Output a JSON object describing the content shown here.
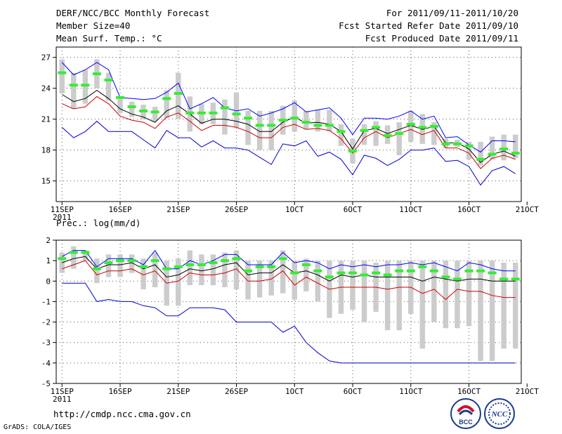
{
  "header": {
    "title": "DERF/NCC/BCC Monthly Forecast",
    "member_size": "Member Size=40",
    "variable1": "Mean Surf. Temp.: °C",
    "period": "For 2011/09/11-2011/10/20",
    "started": "Fcst Started Refer Date 2011/09/10",
    "produced": "Fcst Produced Date 2011/09/11"
  },
  "footer": {
    "url": "http://cmdp.ncc.cma.gov.cn",
    "grads": "GrADS: COLA/IGES",
    "logo1_text": "BCC",
    "logo2_text": "NCC"
  },
  "colors": {
    "max": "#0000ff",
    "min": "#0000cc",
    "ens": "#cc0000",
    "mean": "#000000",
    "obs": "#33ee33",
    "box": "#cccccc"
  },
  "chart_data": [
    {
      "type": "line",
      "title": "Mean Surf. Temp.: °C",
      "ylim": [
        13,
        28
      ],
      "yticks": [
        15,
        18,
        21,
        24,
        27
      ],
      "xlim": [
        0.5,
        40.5
      ],
      "xticks": [
        {
          "day": 1,
          "label": "11SEP",
          "sub": "2011"
        },
        {
          "day": 6,
          "label": "16SEP"
        },
        {
          "day": 11,
          "label": "21SEP"
        },
        {
          "day": 16,
          "label": "26SEP"
        },
        {
          "day": 21,
          "label": "1OCT"
        },
        {
          "day": 26,
          "label": "6OCT"
        },
        {
          "day": 31,
          "label": "11OCT"
        },
        {
          "day": 36,
          "label": "16OCT"
        },
        {
          "day": 41,
          "label": "21OCT"
        }
      ],
      "series": [
        {
          "name": "max",
          "values": [
            26.5,
            25.3,
            25.8,
            26.5,
            25.8,
            23.1,
            23.0,
            22.9,
            23.0,
            23.6,
            24.5,
            22.0,
            22.5,
            23.1,
            22.1,
            21.8,
            22.0,
            21.3,
            21.6,
            22.0,
            22.6,
            21.7,
            21.9,
            22.1,
            21.1,
            19.5,
            21.1,
            21.1,
            21.0,
            21.3,
            21.8,
            21.0,
            21.3,
            19.2,
            19.3,
            18.5,
            17.8,
            18.9,
            18.9,
            18.8
          ]
        },
        {
          "name": "min",
          "values": [
            20.2,
            19.2,
            19.8,
            20.8,
            19.8,
            19.8,
            19.8,
            19.0,
            18.2,
            19.9,
            19.2,
            19.2,
            18.3,
            18.9,
            18.2,
            18.2,
            18.0,
            17.3,
            16.6,
            18.6,
            18.4,
            18.9,
            17.4,
            17.8,
            17.1,
            15.6,
            17.5,
            17.2,
            16.5,
            17.1,
            18.0,
            18.0,
            18.2,
            16.9,
            17.0,
            16.4,
            14.6,
            16.0,
            16.4,
            15.7
          ]
        },
        {
          "name": "ens",
          "values": [
            22.5,
            22.0,
            22.2,
            23.2,
            22.5,
            21.3,
            20.9,
            20.7,
            20.1,
            21.2,
            21.6,
            20.8,
            19.9,
            20.4,
            20.4,
            20.2,
            19.8,
            19.2,
            19.2,
            20.2,
            20.5,
            20.0,
            20.1,
            19.9,
            19.1,
            17.7,
            19.2,
            19.8,
            19.2,
            19.6,
            20.0,
            19.5,
            19.9,
            18.2,
            18.2,
            17.7,
            16.2,
            17.2,
            17.5,
            17.1
          ]
        },
        {
          "name": "mean",
          "values": [
            23.4,
            22.7,
            23.0,
            23.8,
            23.0,
            22.0,
            21.5,
            21.2,
            20.7,
            21.8,
            22.3,
            21.5,
            20.6,
            21.0,
            21.0,
            20.8,
            20.5,
            19.8,
            19.8,
            20.7,
            21.2,
            20.6,
            20.7,
            20.5,
            19.8,
            18.1,
            19.9,
            20.1,
            19.6,
            20.0,
            20.4,
            20.0,
            20.3,
            18.7,
            18.7,
            18.1,
            16.8,
            17.6,
            17.9,
            17.4
          ]
        },
        {
          "name": "obs",
          "values": [
            25.5,
            24.3,
            24.3,
            25.4,
            24.8,
            23.1,
            22.2,
            21.8,
            21.7,
            23.0,
            23.5,
            21.6,
            21.6,
            21.6,
            22.1,
            21.5,
            21.1,
            20.4,
            20.4,
            20.9,
            21.1,
            20.7,
            20.4,
            20.4,
            19.8,
            17.9,
            19.9,
            20.2,
            19.4,
            19.6,
            20.5,
            20.2,
            20.3,
            18.6,
            18.6,
            18.4,
            17.1,
            17.6,
            18.1,
            17.7
          ]
        }
      ],
      "boxes": {
        "low": [
          23.5,
          22.0,
          22.5,
          24.0,
          22.8,
          21.6,
          21.2,
          21.0,
          20.8,
          21.1,
          21.0,
          19.8,
          20.5,
          20.5,
          19.5,
          20.2,
          18.5,
          18.0,
          18.0,
          19.5,
          19.8,
          20.0,
          19.8,
          19.8,
          18.4,
          16.7,
          18.5,
          18.4,
          18.6,
          17.5,
          18.8,
          18.6,
          18.5,
          18.2,
          18.3,
          17.1,
          16.5,
          17.1,
          17.0,
          17.2
        ],
        "high": [
          26.8,
          25.5,
          25.8,
          26.8,
          25.5,
          23.0,
          22.7,
          22.4,
          22.2,
          23.8,
          25.5,
          23.2,
          22.5,
          22.6,
          22.9,
          23.6,
          21.8,
          21.8,
          21.8,
          22.3,
          22.8,
          21.8,
          21.9,
          21.9,
          20.5,
          19.1,
          20.5,
          20.8,
          20.4,
          20.7,
          21.8,
          21.5,
          20.7,
          19.1,
          19.0,
          18.8,
          18.8,
          19.3,
          19.5,
          19.5
        ]
      }
    },
    {
      "type": "line",
      "title": "Prec.: log(mm/d)",
      "ylim": [
        -5,
        2
      ],
      "yticks": [
        -5,
        -4,
        -3,
        -2,
        -1,
        0,
        1,
        2
      ],
      "xlim": [
        0.5,
        40.5
      ],
      "xticks": [
        {
          "day": 1,
          "label": "11SEP",
          "sub": "2011"
        },
        {
          "day": 6,
          "label": "16SEP"
        },
        {
          "day": 11,
          "label": "21SEP"
        },
        {
          "day": 16,
          "label": "26SEP"
        },
        {
          "day": 21,
          "label": "1OCT"
        },
        {
          "day": 26,
          "label": "6OCT"
        },
        {
          "day": 31,
          "label": "11OCT"
        },
        {
          "day": 36,
          "label": "16OCT"
        },
        {
          "day": 41,
          "label": "21OCT"
        }
      ],
      "series": [
        {
          "name": "max",
          "values": [
            1.2,
            1.5,
            1.5,
            0.7,
            1.1,
            1.1,
            1.1,
            0.8,
            1.5,
            0.6,
            0.6,
            1.0,
            0.8,
            1.0,
            1.3,
            1.3,
            0.8,
            0.8,
            0.8,
            1.4,
            0.9,
            1.0,
            0.9,
            0.6,
            0.8,
            0.7,
            0.8,
            0.7,
            0.8,
            0.8,
            0.9,
            0.8,
            0.9,
            0.7,
            0.5,
            0.9,
            0.8,
            0.6,
            0.5,
            0.5
          ]
        },
        {
          "name": "min",
          "values": [
            -0.1,
            -0.1,
            -0.1,
            -1.0,
            -0.9,
            -1.0,
            -1.0,
            -1.2,
            -1.3,
            -1.7,
            -1.7,
            -1.3,
            -1.3,
            -1.3,
            -1.4,
            -2.0,
            -2.0,
            -2.0,
            -2.0,
            -2.5,
            -2.2,
            -3.0,
            -3.5,
            -3.9,
            -4.0,
            -4.0,
            -4.0,
            -4.0,
            -4.0,
            -4.0,
            -4.0,
            -4.0,
            -4.0,
            -4.0,
            -4.0,
            -4.0,
            -4.0,
            -4.0,
            -4.0,
            -4.0
          ]
        },
        {
          "name": "ens",
          "values": [
            0.6,
            0.8,
            1.0,
            0.3,
            0.5,
            0.5,
            0.6,
            0.3,
            0.5,
            -0.1,
            0.0,
            0.4,
            0.3,
            0.3,
            0.4,
            0.6,
            0.0,
            0.0,
            0.1,
            0.5,
            -0.2,
            0.2,
            -0.1,
            -0.4,
            -0.3,
            -0.3,
            -0.3,
            -0.3,
            -0.4,
            -0.3,
            -0.3,
            -0.6,
            -0.4,
            -0.9,
            -0.4,
            -0.5,
            -0.5,
            -0.7,
            -0.8,
            -0.8
          ]
        },
        {
          "name": "mean",
          "values": [
            0.9,
            1.1,
            1.2,
            0.6,
            0.8,
            0.8,
            0.9,
            0.6,
            0.8,
            0.2,
            0.3,
            0.6,
            0.5,
            0.6,
            0.8,
            0.9,
            0.3,
            0.4,
            0.4,
            0.8,
            0.4,
            0.5,
            0.3,
            0.0,
            0.3,
            0.2,
            0.3,
            0.2,
            0.2,
            0.2,
            0.2,
            0.0,
            0.2,
            0.1,
            0.0,
            0.1,
            0.1,
            0.0,
            0.0,
            0.0
          ]
        },
        {
          "name": "obs",
          "values": [
            1.1,
            1.4,
            1.4,
            0.6,
            0.9,
            1.0,
            1.0,
            0.7,
            1.0,
            0.6,
            0.7,
            0.8,
            0.8,
            0.9,
            1.0,
            1.1,
            0.5,
            0.7,
            0.7,
            1.1,
            0.4,
            0.8,
            0.5,
            0.2,
            0.4,
            0.4,
            0.3,
            0.4,
            0.3,
            0.5,
            0.5,
            0.7,
            0.5,
            0.2,
            0.1,
            0.5,
            0.5,
            0.4,
            0.1,
            0.1
          ]
        }
      ],
      "boxes": {
        "low": [
          0.4,
          0.6,
          1.0,
          -0.1,
          0.2,
          0.2,
          0.4,
          -0.4,
          -0.3,
          -1.2,
          -1.2,
          -0.2,
          -0.2,
          -0.2,
          -0.3,
          -0.4,
          -0.9,
          -0.8,
          -0.7,
          -0.6,
          -0.9,
          -0.5,
          -1.0,
          -1.8,
          -1.6,
          -1.4,
          -2.0,
          -1.5,
          -2.4,
          -2.4,
          -1.6,
          -3.3,
          -2.0,
          -2.3,
          -2.3,
          -2.2,
          -3.9,
          -3.9,
          -3.3,
          -3.3
        ],
        "high": [
          1.4,
          1.7,
          1.5,
          1.1,
          1.3,
          1.3,
          1.3,
          1.1,
          1.4,
          1.0,
          1.1,
          1.5,
          1.3,
          1.3,
          1.4,
          1.5,
          1.0,
          1.0,
          1.0,
          1.5,
          1.0,
          1.1,
          1.0,
          1.0,
          1.0,
          1.0,
          1.0,
          0.9,
          1.0,
          1.0,
          1.0,
          1.0,
          1.0,
          1.0,
          1.0,
          1.0,
          1.0,
          1.0,
          0.9,
          0.9
        ]
      }
    }
  ]
}
